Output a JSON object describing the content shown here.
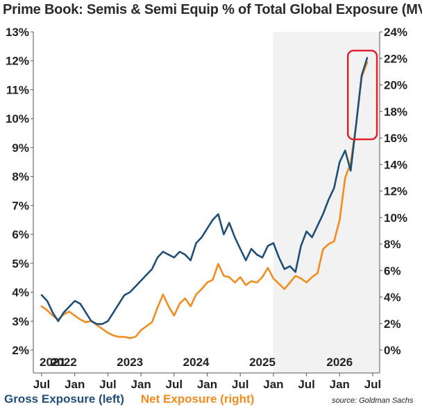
{
  "title": "Prime Book: Semis & Semi Equip % of Total Global Exposure (MV)",
  "legend": {
    "gross": "Gross Exposure (left)",
    "net": "Net Exposure (right)"
  },
  "source": "source: Goldman Sachs",
  "colors": {
    "gross": "#1f4e79",
    "net": "#f28c1e",
    "shade": "#f2f2f2",
    "highlight": "#e0212b"
  },
  "chart_data": {
    "type": "line",
    "title": "Prime Book: Semis & Semi Equip % of Total Global Exposure (MV)",
    "x_range": [
      "2021-07",
      "2026-07"
    ],
    "x_tick_labels": [
      "Jul",
      "Jan",
      "Jul",
      "Jan",
      "Jul",
      "Jan",
      "Jul",
      "Jan",
      "Jul",
      "Jan",
      "Jul"
    ],
    "year_labels": [
      "2021",
      "2022",
      "2023",
      "2024",
      "2025",
      "2026"
    ],
    "left_axis": {
      "ylim": [
        2,
        13
      ],
      "ticks": [
        "2%",
        "3%",
        "4%",
        "5%",
        "6%",
        "7%",
        "8%",
        "9%",
        "10%",
        "11%",
        "12%",
        "13%"
      ]
    },
    "right_axis": {
      "ylim": [
        0,
        24
      ],
      "ticks": [
        "0%",
        "2%",
        "4%",
        "6%",
        "8%",
        "10%",
        "12%",
        "14%",
        "16%",
        "18%",
        "20%",
        "22%",
        "24%"
      ]
    },
    "shaded_region": {
      "from": "2025-01",
      "to": "2026-07"
    },
    "highlight_box": {
      "from": "2026-03",
      "to": "2026-06"
    },
    "grid": false,
    "series": [
      {
        "name": "Gross Exposure (left)",
        "axis": "left",
        "x": [
          "2021-07",
          "2021-08",
          "2021-09",
          "2021-10",
          "2021-11",
          "2021-12",
          "2022-01",
          "2022-02",
          "2022-03",
          "2022-04",
          "2022-05",
          "2022-06",
          "2022-07",
          "2022-08",
          "2022-09",
          "2022-10",
          "2022-11",
          "2022-12",
          "2023-01",
          "2023-02",
          "2023-03",
          "2023-04",
          "2023-05",
          "2023-06",
          "2023-07",
          "2023-08",
          "2023-09",
          "2023-10",
          "2023-11",
          "2023-12",
          "2024-01",
          "2024-02",
          "2024-03",
          "2024-04",
          "2024-05",
          "2024-06",
          "2024-07",
          "2024-08",
          "2024-09",
          "2024-10",
          "2024-11",
          "2024-12",
          "2025-01",
          "2025-02",
          "2025-03",
          "2025-04",
          "2025-05",
          "2025-06",
          "2025-07",
          "2025-08",
          "2025-09",
          "2025-10",
          "2025-11",
          "2025-12",
          "2026-01",
          "2026-02",
          "2026-03",
          "2026-04",
          "2026-05",
          "2026-06"
        ],
        "y": [
          3.9,
          3.7,
          3.3,
          3.0,
          3.3,
          3.5,
          3.7,
          3.6,
          3.3,
          3.0,
          2.9,
          2.9,
          3.0,
          3.3,
          3.6,
          3.9,
          4.0,
          4.2,
          4.4,
          4.6,
          4.8,
          5.2,
          5.4,
          5.3,
          5.2,
          5.4,
          5.3,
          5.1,
          5.7,
          5.9,
          6.2,
          6.5,
          6.7,
          6.0,
          6.4,
          5.9,
          5.5,
          5.1,
          5.5,
          5.3,
          5.2,
          5.6,
          5.7,
          5.2,
          4.8,
          4.9,
          4.7,
          5.6,
          6.1,
          5.9,
          6.3,
          6.7,
          7.2,
          7.6,
          8.5,
          8.9,
          8.2,
          9.8,
          11.5,
          12.1
        ]
      },
      {
        "name": "Net Exposure (right)",
        "axis": "right",
        "x": [
          "2021-07",
          "2021-08",
          "2021-09",
          "2021-10",
          "2021-11",
          "2021-12",
          "2022-01",
          "2022-02",
          "2022-03",
          "2022-04",
          "2022-05",
          "2022-06",
          "2022-07",
          "2022-08",
          "2022-09",
          "2022-10",
          "2022-11",
          "2022-12",
          "2023-01",
          "2023-02",
          "2023-03",
          "2023-04",
          "2023-05",
          "2023-06",
          "2023-07",
          "2023-08",
          "2023-09",
          "2023-10",
          "2023-11",
          "2023-12",
          "2024-01",
          "2024-02",
          "2024-03",
          "2024-04",
          "2024-05",
          "2024-06",
          "2024-07",
          "2024-08",
          "2024-09",
          "2024-10",
          "2024-11",
          "2024-12",
          "2025-01",
          "2025-02",
          "2025-03",
          "2025-04",
          "2025-05",
          "2025-06",
          "2025-07",
          "2025-08",
          "2025-09",
          "2025-10",
          "2025-11",
          "2025-12",
          "2026-01",
          "2026-02",
          "2026-03",
          "2026-04",
          "2026-05",
          "2026-06"
        ],
        "y": [
          3.3,
          3.0,
          2.6,
          2.3,
          2.7,
          2.9,
          2.6,
          2.3,
          2.1,
          2.2,
          1.9,
          1.6,
          1.3,
          1.1,
          1.0,
          1.0,
          0.9,
          1.0,
          1.5,
          1.8,
          2.1,
          3.2,
          4.2,
          3.3,
          2.6,
          3.5,
          3.9,
          3.3,
          4.2,
          4.6,
          5.1,
          5.3,
          6.5,
          5.6,
          5.5,
          5.1,
          5.5,
          4.9,
          5.2,
          5.1,
          5.5,
          6.2,
          5.4,
          5.0,
          4.6,
          5.1,
          5.6,
          5.4,
          5.1,
          5.5,
          5.8,
          7.6,
          8.0,
          8.2,
          9.8,
          13.0,
          14.1,
          17.0,
          20.6,
          21.7
        ]
      }
    ]
  }
}
